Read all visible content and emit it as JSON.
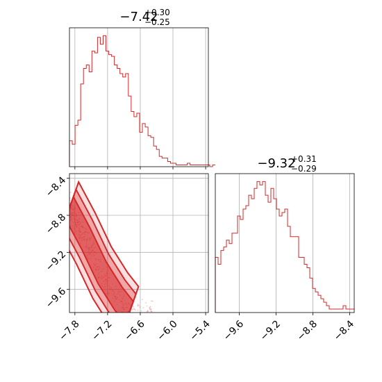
{
  "chart_data": [
    {
      "type": "histogram",
      "panel": "top-left",
      "title": "−7.42",
      "title_sup": "+0.30",
      "title_sub": "−0.25",
      "xlim": [
        -7.9,
        -5.35
      ],
      "bins_start": -7.9,
      "bin_width": 0.0515,
      "counts": [
        15,
        13,
        24,
        27,
        48,
        57,
        59,
        55,
        67,
        66,
        75,
        71,
        76,
        67,
        65,
        64,
        59,
        57,
        54,
        52,
        54,
        41,
        32,
        29,
        31,
        20,
        25,
        23,
        18,
        17,
        12,
        10,
        6,
        5,
        5,
        3,
        2,
        2,
        1,
        1,
        1,
        1,
        2,
        1,
        1,
        1,
        1,
        1,
        1,
        1,
        0,
        1
      ],
      "xticks": [
        -7.8,
        -7.2,
        -6.6,
        -6.0,
        -5.4
      ],
      "color": "#d62728"
    },
    {
      "type": "histogram",
      "panel": "bottom-right",
      "title": "−9.32",
      "title_sup": "+0.31",
      "title_sub": "−0.29",
      "xlim": [
        -9.86,
        -8.35
      ],
      "bins_start": -9.86,
      "bin_width": 0.0302,
      "counts": [
        16,
        14,
        18,
        19,
        21,
        20,
        23,
        23,
        28,
        27,
        30,
        31,
        34,
        33,
        36,
        38,
        37,
        38,
        34,
        32,
        36,
        33,
        30,
        28,
        29,
        30,
        25,
        22,
        22,
        22,
        16,
        16,
        14,
        13,
        10,
        7,
        6,
        5,
        4,
        3,
        2,
        1,
        1,
        1,
        1,
        1,
        2,
        1,
        1,
        1
      ],
      "xticks": [
        -9.6,
        -9.2,
        -8.8,
        -8.4
      ],
      "color": "#d62728"
    },
    {
      "type": "contour",
      "panel": "bottom-left",
      "xlim": [
        -7.9,
        -5.35
      ],
      "ylim": [
        -9.85,
        -8.35
      ],
      "xticks": [
        -7.8,
        -7.2,
        -6.6,
        -6.0,
        -5.4
      ],
      "yticks": [
        -8.4,
        -8.8,
        -9.2,
        -9.6
      ],
      "tick_labels_x": [
        "−7.8",
        "−7.2",
        "−6.6",
        "−6.0",
        "−5.4"
      ],
      "tick_labels_y": [
        "−8.4",
        "−8.8",
        "−9.2",
        "−9.6"
      ],
      "band": {
        "center": [
          [
            -7.9,
            -8.72
          ],
          [
            -7.6,
            -9.05
          ],
          [
            -7.3,
            -9.42
          ],
          [
            -7.0,
            -9.7
          ],
          [
            -6.8,
            -9.85
          ]
        ],
        "half_widths": [
          0.12,
          0.2,
          0.28
        ]
      },
      "grid": true,
      "color": "#d62728"
    }
  ]
}
